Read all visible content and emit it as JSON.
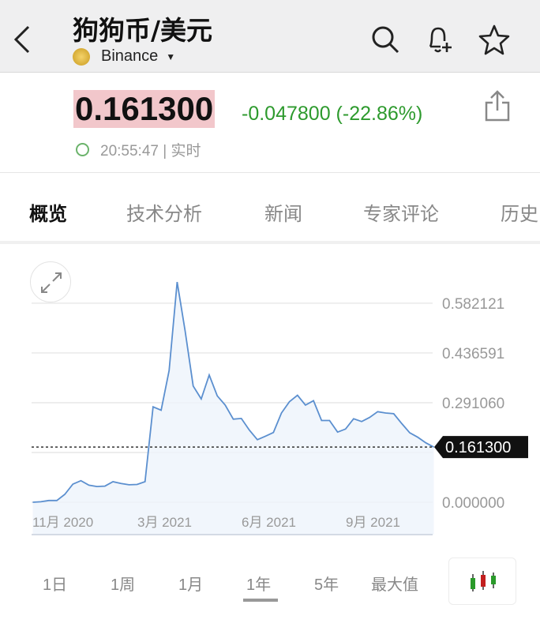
{
  "header": {
    "title": "狗狗币/美元",
    "exchange": "Binance",
    "icons": [
      "back-icon",
      "search-icon",
      "bell-plus-icon",
      "star-icon"
    ]
  },
  "quote": {
    "price": "0.161300",
    "change": "-0.047800 (-22.86%)",
    "time": "20:55:47 | 实时",
    "change_color": "#2d9a2d",
    "price_highlight": "#f2c7cb"
  },
  "tabs": [
    {
      "label": "概览",
      "active": true
    },
    {
      "label": "技术分析"
    },
    {
      "label": "新闻"
    },
    {
      "label": "专家评论"
    },
    {
      "label": "历史"
    }
  ],
  "ranges": [
    {
      "label": "1日"
    },
    {
      "label": "1周"
    },
    {
      "label": "1月"
    },
    {
      "label": "1年",
      "active": true
    },
    {
      "label": "5年"
    },
    {
      "label": "最大值"
    }
  ],
  "chart_data": {
    "type": "area",
    "x_tick_labels": [
      "11月 2020",
      "3月 2021",
      "6月 2021",
      "9月 2021"
    ],
    "y_tick_labels": [
      "0.582121",
      "0.436591",
      "0.291060",
      "0.000000"
    ],
    "y_ticks": [
      0,
      0.14553,
      0.29106,
      0.436591,
      0.582121
    ],
    "ylim": [
      0,
      0.65
    ],
    "current_value_label": "0.161300",
    "current_value": 0.1613,
    "line_color": "#5b8fcf",
    "grid": true,
    "x_start": "2020-11-01",
    "x_step": "1 week",
    "values": [
      0,
      0.0015,
      0.005,
      0.005,
      0.023,
      0.053,
      0.063,
      0.05,
      0.046,
      0.047,
      0.06,
      0.055,
      0.051,
      0.052,
      0.06,
      0.279,
      0.269,
      0.385,
      0.644,
      0.501,
      0.34,
      0.302,
      0.372,
      0.311,
      0.284,
      0.243,
      0.245,
      0.211,
      0.183,
      0.193,
      0.204,
      0.261,
      0.294,
      0.313,
      0.284,
      0.297,
      0.239,
      0.239,
      0.205,
      0.214,
      0.244,
      0.236,
      0.248,
      0.265,
      0.261,
      0.259,
      0.23,
      0.203,
      0.19,
      0.174,
      0.1613
    ]
  }
}
